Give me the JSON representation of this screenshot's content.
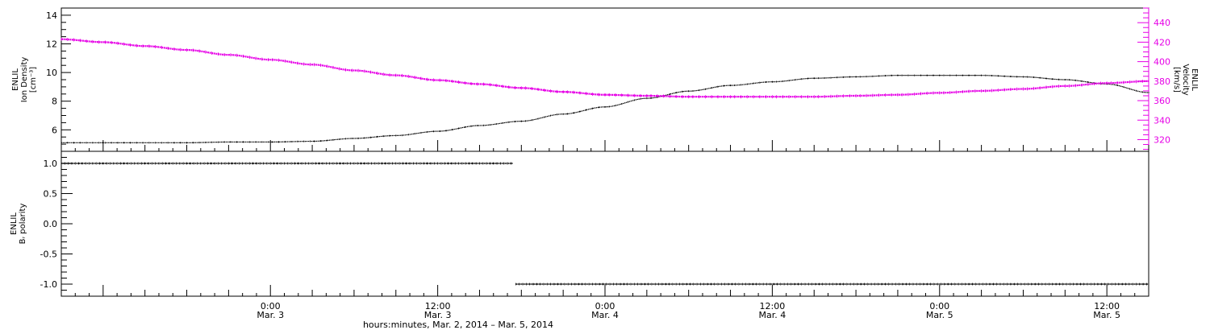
{
  "chart_data": [
    {
      "type": "line",
      "panel": "top",
      "xaxis": {
        "label": "hours:minutes, Mar.  2, 2014 – Mar.  5, 2014",
        "range_hours": [
          -15.0,
          63.0
        ],
        "ticks": [
          {
            "hour": 0,
            "time": "0:00",
            "date": "Mar. 3"
          },
          {
            "hour": 12,
            "time": "12:00",
            "date": "Mar. 3"
          },
          {
            "hour": 24,
            "time": "0:00",
            "date": "Mar. 4"
          },
          {
            "hour": 36,
            "time": "12:00",
            "date": "Mar. 4"
          },
          {
            "hour": 48,
            "time": "0:00",
            "date": "Mar. 5"
          },
          {
            "hour": 60,
            "time": "12:00",
            "date": "Mar. 5"
          }
        ]
      },
      "left_axis": {
        "title_lines": [
          "ENLIL",
          "Ion Density",
          "[cm⁻³]"
        ],
        "ylim": [
          4.5,
          14.5
        ],
        "ticks": [
          6,
          8,
          10,
          12,
          14
        ],
        "color": "#000000"
      },
      "right_axis": {
        "title_lines": [
          "ENLIL",
          "Velocity",
          "[km/s]"
        ],
        "ylim": [
          308,
          455
        ],
        "ticks": [
          320,
          340,
          360,
          380,
          400,
          420,
          440
        ],
        "color": "#e600e6"
      },
      "series": [
        {
          "axis": "left",
          "color": "#000000",
          "x": [
            -15,
            -12,
            -9,
            -6,
            -3,
            0,
            3,
            6,
            9,
            12,
            15,
            18,
            21,
            24,
            27,
            30,
            33,
            36,
            39,
            42,
            45,
            48,
            51,
            54,
            57,
            60,
            63
          ],
          "y": [
            5.1,
            5.1,
            5.1,
            5.1,
            5.15,
            5.15,
            5.2,
            5.4,
            5.6,
            5.9,
            6.3,
            6.6,
            7.1,
            7.6,
            8.2,
            8.7,
            9.1,
            9.35,
            9.6,
            9.7,
            9.8,
            9.8,
            9.8,
            9.7,
            9.5,
            9.2,
            8.6
          ]
        },
        {
          "axis": "right",
          "color": "#e600e6",
          "x": [
            -15,
            -12,
            -9,
            -6,
            -3,
            0,
            3,
            6,
            9,
            12,
            15,
            18,
            21,
            24,
            27,
            30,
            33,
            36,
            39,
            42,
            45,
            48,
            51,
            54,
            57,
            60,
            63
          ],
          "y": [
            423,
            420,
            416,
            412,
            407,
            402,
            397,
            391,
            386,
            381,
            377,
            373,
            369,
            366,
            365,
            364,
            364,
            364,
            364,
            365,
            366,
            368,
            370,
            372,
            375,
            378,
            380
          ]
        }
      ]
    },
    {
      "type": "scatter",
      "panel": "bottom",
      "left_axis": {
        "title_lines": [
          "ENLIL",
          "Bᵣ polarity"
        ],
        "ylim": [
          -1.2,
          1.2
        ],
        "ticks": [
          {
            "v": 1.0,
            "label": "1.0"
          },
          {
            "v": 0.5,
            "label": "0.5"
          },
          {
            "v": 0.0,
            "label": "0.0"
          },
          {
            "v": -0.5,
            "label": "-0.5"
          },
          {
            "v": -1.0,
            "label": "-1.0"
          }
        ],
        "color": "#000000"
      },
      "series": [
        {
          "color": "#000000",
          "segments": [
            {
              "x_start": -15.0,
              "x_end": 17.4,
              "y": 1.0
            },
            {
              "x_start": 17.6,
              "x_end": 63.0,
              "y": -1.0
            }
          ]
        }
      ]
    }
  ]
}
